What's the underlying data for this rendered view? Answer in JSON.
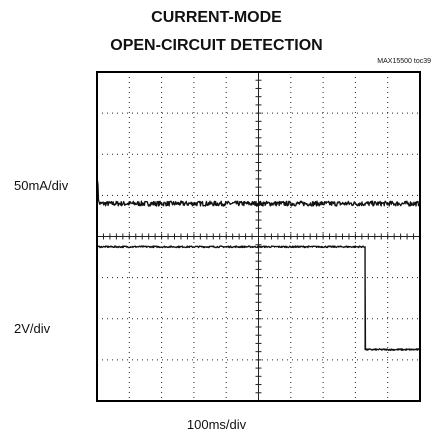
{
  "figure": {
    "title_line1": "CURRENT-MODE",
    "title_line2": "OPEN-CIRCUIT DETECTION",
    "figure_id": "MAX15500 toc39",
    "colors": {
      "trace": "#111111",
      "grid": "#222222",
      "frame": "#000000"
    }
  },
  "chart_data": {
    "type": "line",
    "title": "CURRENT-MODE OPEN-CIRCUIT DETECTION",
    "xlabel": "100ms/div",
    "grid": true,
    "divisions": {
      "x": 10,
      "y": 8
    },
    "channels": [
      {
        "scale": "50mA/div"
      },
      {
        "scale": "2V/div"
      }
    ],
    "series": [
      {
        "channel": 0,
        "x": [
          0,
          0.03,
          0.05,
          0.07,
          10
        ],
        "y": [
          5.3,
          5.3,
          4.85,
          4.8,
          4.8
        ],
        "noise": 0.06
      },
      {
        "channel": 1,
        "x": [
          0,
          8.3,
          8.3,
          10
        ],
        "y": [
          3.75,
          3.75,
          1.25,
          1.25
        ],
        "noise": 0.02
      }
    ]
  }
}
